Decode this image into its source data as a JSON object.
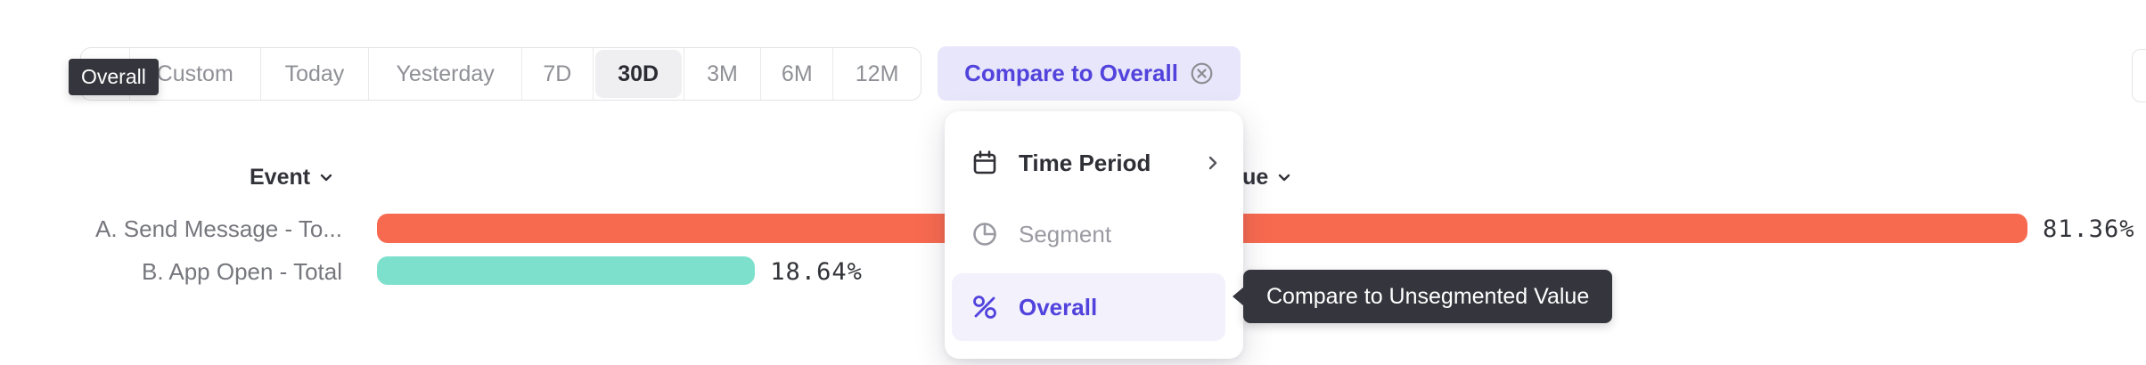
{
  "toolbar": {
    "first_button_icon": "calendar-icon",
    "tabs": [
      "Custom",
      "Today",
      "Yesterday",
      "7D",
      "30D",
      "3M",
      "6M",
      "12M"
    ],
    "selected_tab": "30D",
    "selected_tab_index": 4,
    "compare_button": {
      "label": "Compare to Overall",
      "close_icon": "x-circle-icon"
    }
  },
  "tooltips": {
    "overall": "Overall",
    "compare": "Compare to Unsegmented Value"
  },
  "menu": {
    "items": [
      {
        "label": "Time Period",
        "icon": "calendar-icon",
        "has_submenu": true,
        "state": "default"
      },
      {
        "label": "Segment",
        "icon": "segment-icon",
        "has_submenu": false,
        "state": "disabled"
      },
      {
        "label": "Overall",
        "icon": "percent-icon",
        "has_submenu": false,
        "state": "selected"
      }
    ]
  },
  "chart_data": {
    "type": "bar",
    "orientation": "horizontal",
    "column_headers": [
      {
        "label": "Event",
        "sort_icon": "chevron-down-icon"
      },
      {
        "label": "Value",
        "sort_icon": "chevron-down-icon",
        "note": "partially hidden behind open menu"
      }
    ],
    "categories": [
      "A. Send Message - To...",
      "B. App Open - Total"
    ],
    "values": [
      81.36,
      18.64
    ],
    "value_labels": [
      "81.36%",
      "18.64%"
    ],
    "colors": [
      "#F86A50",
      "#7DE0CD"
    ],
    "xlim": [
      0,
      81.36
    ],
    "legend": "none",
    "grid": "off"
  },
  "colors": {
    "accent_purple": "#5143DC",
    "chip_lavender": "#E8E6FA",
    "menu_highlight": "#F2F1FC",
    "tooltip_bg": "#35353D",
    "bar_orange": "#F86A50",
    "bar_teal": "#7DE0CD",
    "selected_tab_bg": "#EFEFF2",
    "tab_text_gray": "#8F9096",
    "dark_text": "#2B2B33",
    "disabled_text": "#9A9AA2",
    "border_gray": "#E3E3E7"
  }
}
